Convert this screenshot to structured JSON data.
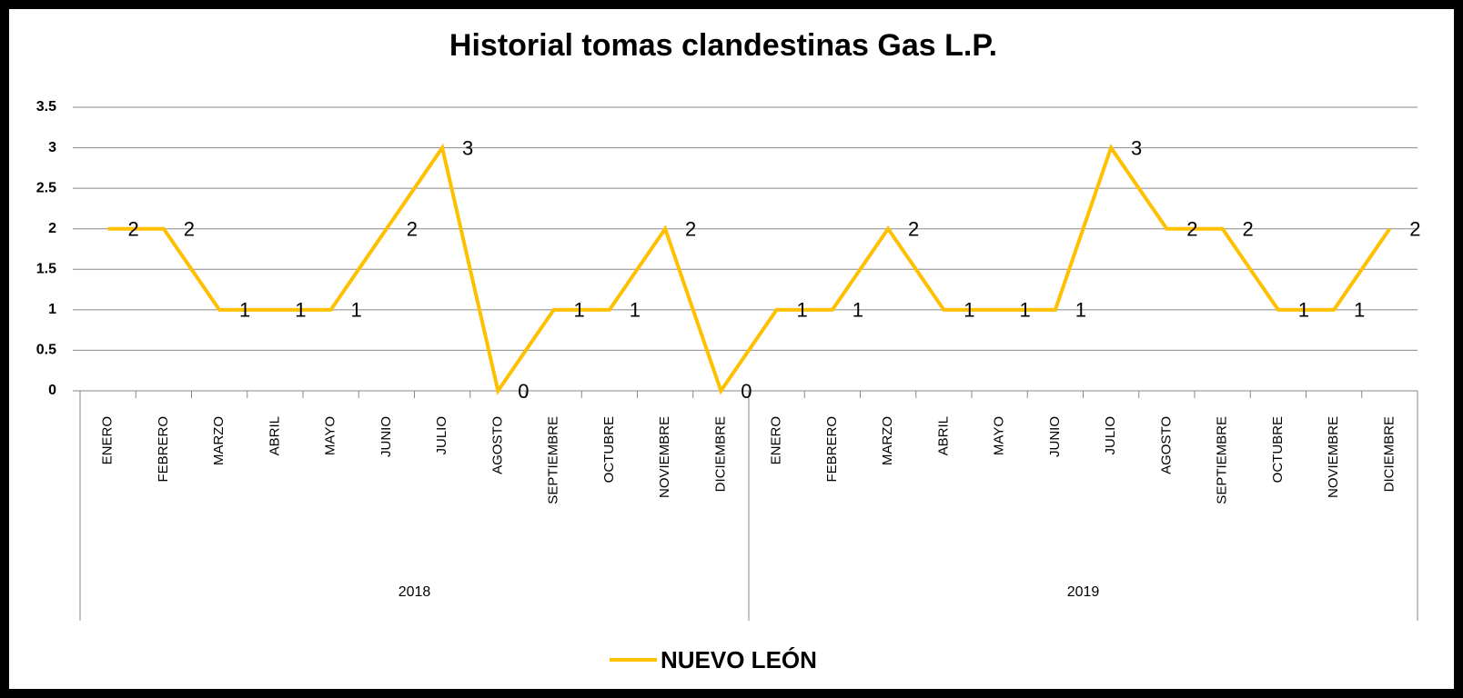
{
  "chart_data": {
    "type": "line",
    "title": "Historial tomas clandestinas Gas L.P.",
    "categories": [
      "ENERO",
      "FEBRERO",
      "MARZO",
      "ABRIL",
      "MAYO",
      "JUNIO",
      "JULIO",
      "AGOSTO",
      "SEPTIEMBRE",
      "OCTUBRE",
      "NOVIEMBRE",
      "DICIEMBRE",
      "ENERO",
      "FEBRERO",
      "MARZO",
      "ABRIL",
      "MAYO",
      "JUNIO",
      "JULIO",
      "AGOSTO",
      "SEPTIEMBRE",
      "OCTUBRE",
      "NOVIEMBRE",
      "DICIEMBRE"
    ],
    "groups": [
      "2018",
      "2019"
    ],
    "series": [
      {
        "name": "NUEVO LEÓN",
        "color": "#ffc000",
        "values": [
          2,
          2,
          1,
          1,
          1,
          2,
          3,
          0,
          1,
          1,
          2,
          0,
          1,
          1,
          2,
          1,
          1,
          1,
          3,
          2,
          2,
          1,
          1,
          2
        ]
      }
    ],
    "ylim": [
      0,
      3.5
    ],
    "yticks": [
      0,
      0.5,
      1,
      1.5,
      2,
      2.5,
      3,
      3.5
    ],
    "grid": true,
    "legend": "bottom"
  }
}
